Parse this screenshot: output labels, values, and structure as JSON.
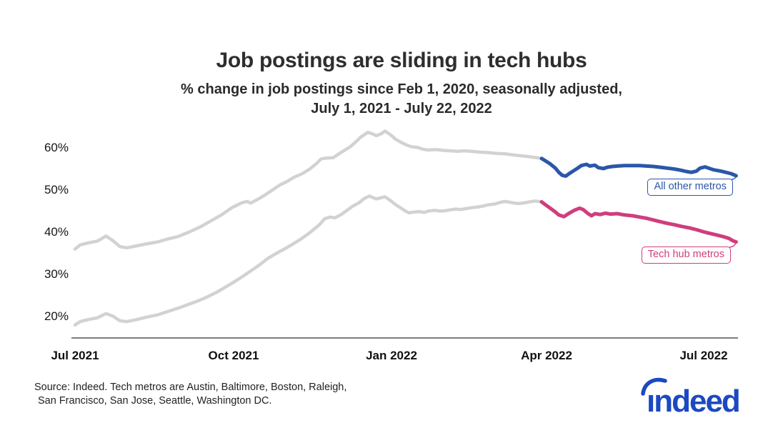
{
  "header": {
    "title": "Job postings are sliding in tech hubs",
    "subtitle_line1": "% change in job postings since Feb 1, 2020, seasonally adjusted,",
    "subtitle_line2": "July 1, 2021 - July 22, 2022"
  },
  "footer": {
    "source_line1": "Source: Indeed. Tech metros are Austin, Baltimore, Boston, Raleigh,",
    "source_line2": "San Francisco, San Jose, Seattle, Washington DC.",
    "logo_text": "indeed",
    "logo_color": "#1b49c0"
  },
  "colors": {
    "muted_line": "#d2d2d2",
    "all_other_metros": "#2a57a9",
    "tech_hub_metros": "#cf3e7c",
    "axis": "#7d7d7d",
    "text_dark": "#2e2e2e"
  },
  "chart_data": {
    "type": "line",
    "title": "Job postings are sliding in tech hubs",
    "subtitle": "% change in job postings since Feb 1, 2020, seasonally adjusted, July 1, 2021 - July 22, 2022",
    "x_unit": "days since Jul 1, 2021",
    "x_domain_days": [
      0,
      386
    ],
    "y_axis": {
      "min": 15,
      "max": 66,
      "grid": false
    },
    "highlight_start_day": 271,
    "muted_color": "#d2d2d2",
    "x_ticks": [
      {
        "label": "Jul 2021",
        "day": 0
      },
      {
        "label": "Oct 2021",
        "day": 92
      },
      {
        "label": "Jan 2022",
        "day": 184
      },
      {
        "label": "Apr 2022",
        "day": 274
      },
      {
        "label": "Jul 2022",
        "day": 365
      }
    ],
    "y_ticks": [
      {
        "label": "60%",
        "value": 60
      },
      {
        "label": "50%",
        "value": 50
      },
      {
        "label": "40%",
        "value": 40
      },
      {
        "label": "30%",
        "value": 30
      },
      {
        "label": "20%",
        "value": 20
      }
    ],
    "series": [
      {
        "name": "All other metros",
        "color": "#2a57a9",
        "points": [
          [
            0,
            36.0
          ],
          [
            3,
            37.0
          ],
          [
            8,
            37.5
          ],
          [
            13,
            37.9
          ],
          [
            18,
            39.1
          ],
          [
            22,
            38.0
          ],
          [
            26,
            36.6
          ],
          [
            30,
            36.3
          ],
          [
            35,
            36.7
          ],
          [
            41,
            37.2
          ],
          [
            48,
            37.7
          ],
          [
            54,
            38.4
          ],
          [
            60,
            39.0
          ],
          [
            66,
            40.0
          ],
          [
            73,
            41.3
          ],
          [
            79,
            42.7
          ],
          [
            85,
            44.1
          ],
          [
            91,
            45.8
          ],
          [
            97,
            47.0
          ],
          [
            100,
            47.3
          ],
          [
            102,
            46.9
          ],
          [
            107,
            48.0
          ],
          [
            111,
            49.0
          ],
          [
            115,
            50.1
          ],
          [
            119,
            51.2
          ],
          [
            123,
            52.0
          ],
          [
            127,
            53.0
          ],
          [
            132,
            53.9
          ],
          [
            136,
            54.9
          ],
          [
            140,
            56.2
          ],
          [
            143,
            57.4
          ],
          [
            146,
            57.6
          ],
          [
            150,
            57.7
          ],
          [
            153,
            58.5
          ],
          [
            156,
            59.3
          ],
          [
            160,
            60.3
          ],
          [
            163,
            61.4
          ],
          [
            166,
            62.6
          ],
          [
            170,
            63.7
          ],
          [
            173,
            63.3
          ],
          [
            175,
            62.9
          ],
          [
            178,
            63.4
          ],
          [
            180,
            64.0
          ],
          [
            183,
            63.2
          ],
          [
            186,
            62.1
          ],
          [
            189,
            61.4
          ],
          [
            192,
            60.8
          ],
          [
            195,
            60.3
          ],
          [
            199,
            60.1
          ],
          [
            202,
            59.7
          ],
          [
            205,
            59.5
          ],
          [
            210,
            59.6
          ],
          [
            214,
            59.4
          ],
          [
            218,
            59.3
          ],
          [
            222,
            59.2
          ],
          [
            226,
            59.3
          ],
          [
            230,
            59.2
          ],
          [
            235,
            59.0
          ],
          [
            240,
            58.9
          ],
          [
            245,
            58.7
          ],
          [
            250,
            58.6
          ],
          [
            255,
            58.3
          ],
          [
            260,
            58.1
          ],
          [
            264,
            57.9
          ],
          [
            268,
            57.7
          ],
          [
            271,
            57.5
          ],
          [
            273,
            57.0
          ],
          [
            276,
            56.2
          ],
          [
            279,
            55.2
          ],
          [
            281,
            54.2
          ],
          [
            283,
            53.5
          ],
          [
            285,
            53.3
          ],
          [
            287,
            53.9
          ],
          [
            290,
            54.7
          ],
          [
            292,
            55.2
          ],
          [
            294,
            55.8
          ],
          [
            297,
            56.1
          ],
          [
            299,
            55.7
          ],
          [
            302,
            55.9
          ],
          [
            304,
            55.3
          ],
          [
            307,
            55.1
          ],
          [
            309,
            55.4
          ],
          [
            312,
            55.6
          ],
          [
            315,
            55.7
          ],
          [
            319,
            55.8
          ],
          [
            324,
            55.8
          ],
          [
            328,
            55.8
          ],
          [
            332,
            55.7
          ],
          [
            336,
            55.6
          ],
          [
            340,
            55.4
          ],
          [
            344,
            55.2
          ],
          [
            348,
            55.0
          ],
          [
            352,
            54.7
          ],
          [
            355,
            54.4
          ],
          [
            358,
            54.2
          ],
          [
            361,
            54.5
          ],
          [
            363,
            55.2
          ],
          [
            366,
            55.5
          ],
          [
            368,
            55.2
          ],
          [
            371,
            54.8
          ],
          [
            375,
            54.5
          ],
          [
            378,
            54.2
          ],
          [
            381,
            53.9
          ],
          [
            384,
            53.4
          ]
        ]
      },
      {
        "name": "Tech hub metros",
        "color": "#cf3e7c",
        "points": [
          [
            0,
            18.0
          ],
          [
            3,
            18.8
          ],
          [
            8,
            19.3
          ],
          [
            13,
            19.7
          ],
          [
            18,
            20.7
          ],
          [
            22,
            20.1
          ],
          [
            26,
            19.0
          ],
          [
            30,
            18.8
          ],
          [
            35,
            19.2
          ],
          [
            41,
            19.8
          ],
          [
            48,
            20.4
          ],
          [
            54,
            21.2
          ],
          [
            60,
            22.0
          ],
          [
            66,
            22.9
          ],
          [
            72,
            23.8
          ],
          [
            77,
            24.7
          ],
          [
            82,
            25.7
          ],
          [
            87,
            26.9
          ],
          [
            92,
            28.1
          ],
          [
            97,
            29.4
          ],
          [
            102,
            30.8
          ],
          [
            107,
            32.2
          ],
          [
            112,
            33.8
          ],
          [
            117,
            35.0
          ],
          [
            122,
            36.1
          ],
          [
            127,
            37.3
          ],
          [
            132,
            38.6
          ],
          [
            137,
            40.1
          ],
          [
            142,
            41.8
          ],
          [
            145,
            43.2
          ],
          [
            148,
            43.6
          ],
          [
            151,
            43.4
          ],
          [
            155,
            44.3
          ],
          [
            158,
            45.2
          ],
          [
            161,
            46.1
          ],
          [
            165,
            47.0
          ],
          [
            168,
            48.0
          ],
          [
            171,
            48.6
          ],
          [
            173,
            48.2
          ],
          [
            175,
            47.9
          ],
          [
            178,
            48.2
          ],
          [
            180,
            48.4
          ],
          [
            183,
            47.6
          ],
          [
            186,
            46.6
          ],
          [
            189,
            45.8
          ],
          [
            192,
            45.0
          ],
          [
            194,
            44.6
          ],
          [
            197,
            44.8
          ],
          [
            200,
            44.9
          ],
          [
            203,
            44.7
          ],
          [
            205,
            45.0
          ],
          [
            209,
            45.2
          ],
          [
            212,
            45.0
          ],
          [
            215,
            45.1
          ],
          [
            218,
            45.3
          ],
          [
            221,
            45.5
          ],
          [
            224,
            45.4
          ],
          [
            227,
            45.6
          ],
          [
            230,
            45.8
          ],
          [
            234,
            46.0
          ],
          [
            237,
            46.2
          ],
          [
            240,
            46.5
          ],
          [
            244,
            46.7
          ],
          [
            247,
            47.1
          ],
          [
            250,
            47.3
          ],
          [
            254,
            47.0
          ],
          [
            257,
            46.8
          ],
          [
            260,
            46.9
          ],
          [
            264,
            47.2
          ],
          [
            267,
            47.4
          ],
          [
            271,
            47.2
          ],
          [
            273,
            46.6
          ],
          [
            276,
            45.7
          ],
          [
            279,
            44.8
          ],
          [
            281,
            44.1
          ],
          [
            284,
            43.7
          ],
          [
            287,
            44.5
          ],
          [
            290,
            45.2
          ],
          [
            293,
            45.7
          ],
          [
            295,
            45.4
          ],
          [
            298,
            44.4
          ],
          [
            300,
            43.9
          ],
          [
            302,
            44.4
          ],
          [
            305,
            44.2
          ],
          [
            308,
            44.5
          ],
          [
            311,
            44.3
          ],
          [
            315,
            44.4
          ],
          [
            319,
            44.1
          ],
          [
            324,
            43.9
          ],
          [
            328,
            43.6
          ],
          [
            332,
            43.3
          ],
          [
            336,
            42.9
          ],
          [
            340,
            42.5
          ],
          [
            344,
            42.1
          ],
          [
            348,
            41.8
          ],
          [
            352,
            41.4
          ],
          [
            357,
            41.0
          ],
          [
            361,
            40.6
          ],
          [
            365,
            40.1
          ],
          [
            369,
            39.7
          ],
          [
            373,
            39.3
          ],
          [
            377,
            38.9
          ],
          [
            380,
            38.5
          ],
          [
            382,
            38.0
          ],
          [
            384,
            37.7
          ]
        ]
      }
    ]
  }
}
